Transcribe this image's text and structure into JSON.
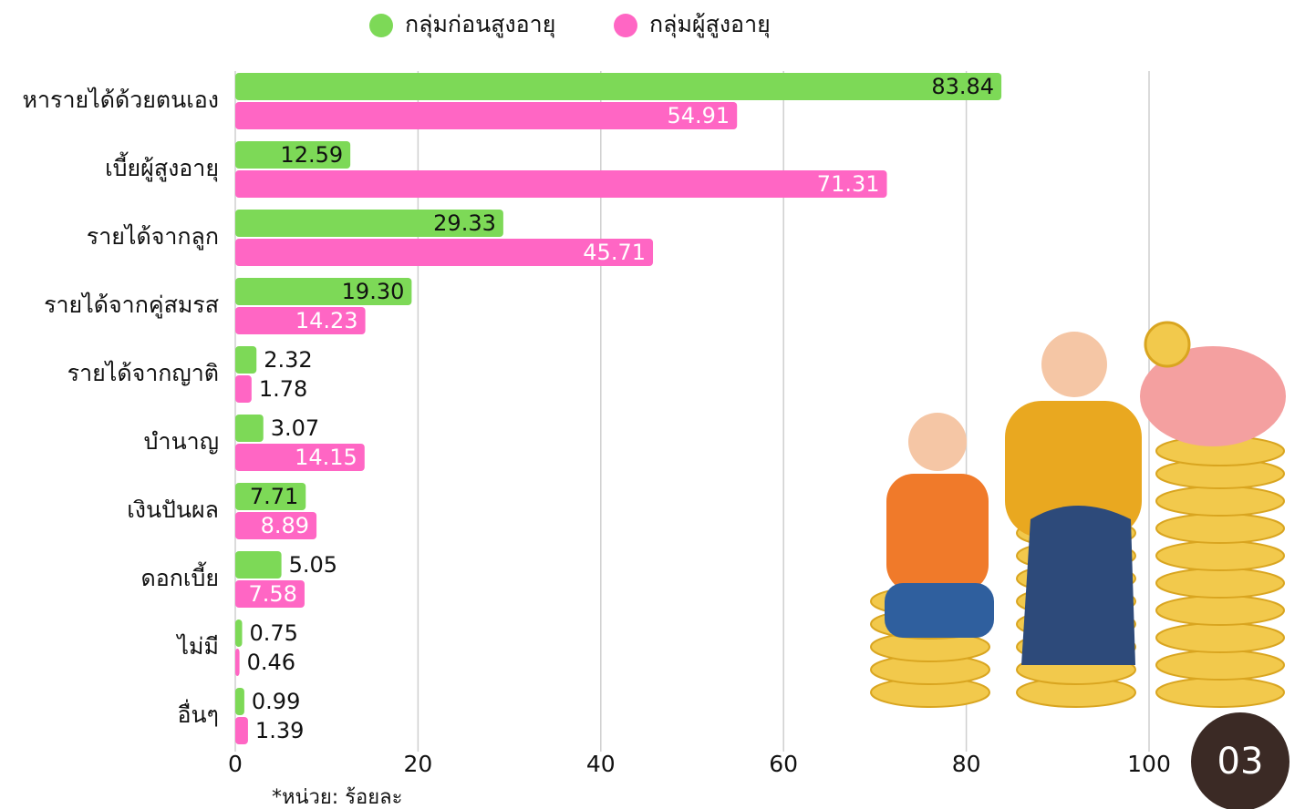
{
  "chart_data": {
    "type": "bar",
    "orientation": "horizontal",
    "categories": [
      "หารายได้ด้วยตนเอง",
      "เบี้ยผู้สูงอายุ",
      "รายได้จากลูก",
      "รายได้จากคู่สมรส",
      "รายได้จากญาติ",
      "บำนาญ",
      "เงินปันผล",
      "ดอกเบี้ย",
      "ไม่มี",
      "อื่นๆ"
    ],
    "series": [
      {
        "name": "กลุ่มก่อนสูงอายุ",
        "color": "#7dd957",
        "values": [
          83.84,
          12.59,
          29.33,
          19.3,
          2.32,
          3.07,
          7.71,
          5.05,
          0.75,
          0.99
        ],
        "value_labels": [
          "83.84",
          "12.59",
          "29.33",
          "19.30",
          "2.32",
          "3.07",
          "7.71",
          "5.05",
          "0.75",
          "0.99"
        ]
      },
      {
        "name": "กลุ่มผู้สูงอายุ",
        "color": "#ff66c4",
        "values": [
          54.91,
          71.31,
          45.71,
          14.23,
          1.78,
          14.15,
          8.89,
          7.58,
          0.46,
          1.39
        ],
        "value_labels": [
          "54.91",
          "71.31",
          "45.71",
          "14.23",
          "1.78",
          "14.15",
          "8.89",
          "7.58",
          "0.46",
          "1.39"
        ]
      }
    ],
    "xlim": [
      0,
      100
    ],
    "xticks": [
      0,
      20,
      40,
      60,
      80,
      100
    ],
    "grid": true,
    "legend": "top",
    "note": "*หน่วย: ร้อยละ",
    "badge": "03"
  }
}
